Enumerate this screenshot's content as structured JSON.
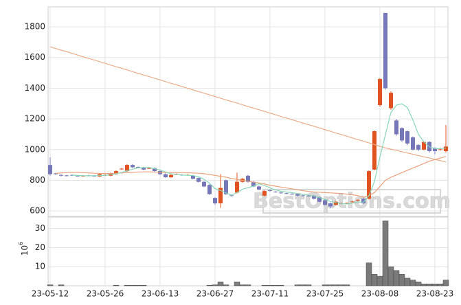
{
  "chart_data": {
    "type": "candlestick",
    "categories": [
      "23-05-12",
      null,
      null,
      null,
      null,
      null,
      null,
      null,
      null,
      null,
      "23-05-26",
      null,
      null,
      null,
      null,
      null,
      null,
      null,
      null,
      null,
      "23-06-13",
      null,
      null,
      null,
      null,
      null,
      null,
      null,
      null,
      null,
      "23-06-27",
      null,
      null,
      null,
      null,
      null,
      null,
      null,
      null,
      null,
      "23-07-11",
      null,
      null,
      null,
      null,
      null,
      null,
      null,
      null,
      null,
      "23-07-25",
      null,
      null,
      null,
      null,
      null,
      null,
      null,
      null,
      null,
      "23-08-08",
      null,
      null,
      null,
      null,
      null,
      null,
      null,
      null,
      null,
      "23-08-23",
      null,
      null
    ],
    "open": [
      900,
      845,
      835,
      832,
      835,
      830,
      828,
      832,
      830,
      825,
      833,
      830,
      840,
      872,
      860,
      900,
      887,
      885,
      878,
      880,
      860,
      840,
      820,
      838,
      836,
      835,
      830,
      815,
      790,
      770,
      685,
      650,
      800,
      702,
      720,
      790,
      830,
      790,
      760,
      700,
      735,
      726,
      720,
      716,
      712,
      710,
      702,
      700,
      700,
      690,
      670,
      650,
      640,
      648,
      650,
      658,
      668,
      680,
      680,
      870,
      1290,
      1890,
      1270,
      1190,
      1140,
      1120,
      1080,
      1030,
      1000,
      1050,
      1010,
      1000,
      990
    ],
    "high": [
      950,
      850,
      840,
      836,
      838,
      834,
      834,
      836,
      834,
      845,
      840,
      850,
      865,
      880,
      905,
      905,
      890,
      888,
      884,
      884,
      864,
      845,
      840,
      845,
      840,
      840,
      835,
      818,
      795,
      775,
      690,
      840,
      805,
      706,
      850,
      815,
      835,
      795,
      765,
      735,
      740,
      730,
      724,
      720,
      716,
      714,
      706,
      704,
      704,
      694,
      674,
      655,
      665,
      655,
      656,
      666,
      676,
      685,
      865,
      1125,
      1465,
      1890,
      1380,
      1200,
      1145,
      1125,
      1085,
      1035,
      1055,
      1055,
      1015,
      1010,
      1160
    ],
    "low": [
      830,
      835,
      825,
      826,
      828,
      824,
      824,
      826,
      824,
      822,
      828,
      826,
      836,
      868,
      856,
      880,
      880,
      866,
      874,
      856,
      836,
      816,
      816,
      834,
      830,
      830,
      806,
      786,
      755,
      705,
      640,
      620,
      705,
      695,
      715,
      785,
      785,
      755,
      735,
      695,
      728,
      720,
      714,
      710,
      706,
      696,
      696,
      694,
      676,
      656,
      636,
      620,
      636,
      644,
      646,
      654,
      664,
      645,
      675,
      865,
      1280,
      1390,
      1260,
      1090,
      1050,
      1030,
      995,
      990,
      995,
      980,
      970,
      995,
      980
    ],
    "close": [
      840,
      840,
      830,
      830,
      832,
      828,
      830,
      830,
      828,
      840,
      835,
      845,
      860,
      876,
      900,
      885,
      884,
      870,
      880,
      860,
      840,
      820,
      835,
      840,
      835,
      836,
      810,
      790,
      760,
      710,
      650,
      750,
      710,
      700,
      790,
      810,
      790,
      760,
      740,
      730,
      733,
      724,
      718,
      714,
      710,
      700,
      700,
      698,
      680,
      660,
      640,
      630,
      660,
      650,
      652,
      662,
      672,
      650,
      860,
      1120,
      1460,
      1400,
      1370,
      1100,
      1060,
      1040,
      1000,
      1000,
      1050,
      990,
      990,
      1002,
      1020
    ],
    "up_color": "#e0521f",
    "down_color": "#7577b8",
    "ylim": [
      565,
      1930
    ],
    "yticks": [
      600,
      800,
      1000,
      1200,
      1400,
      1600,
      1800
    ],
    "grid": true,
    "lines": [
      {
        "color": "#e9ab88",
        "values": [
          1670,
          1659,
          1648,
          1638,
          1627,
          1616,
          1605,
          1594,
          1584,
          1573,
          1562,
          1551,
          1540,
          1530,
          1519,
          1508,
          1497,
          1486,
          1476,
          1465,
          1454,
          1443,
          1432,
          1422,
          1411,
          1400,
          1389,
          1378,
          1368,
          1357,
          1346,
          1335,
          1324,
          1314,
          1303,
          1292,
          1281,
          1270,
          1260,
          1249,
          1238,
          1227,
          1216,
          1206,
          1195,
          1184,
          1173,
          1162,
          1152,
          1141,
          1130,
          1119,
          1108,
          1098,
          1087,
          1076,
          1065,
          1054,
          1044,
          1033,
          1022,
          1011,
          1003,
          995,
          986,
          978,
          970,
          961,
          953,
          945,
          936,
          928,
          920
        ]
      },
      {
        "color": "#e9a07a",
        "values": [
          null,
          845,
          848,
          850,
          852,
          852,
          850,
          848,
          846,
          845,
          844,
          845,
          846,
          848,
          850,
          852,
          854,
          855,
          855,
          854,
          852,
          850,
          850,
          850,
          850,
          849,
          848,
          846,
          843,
          838,
          832,
          826,
          820,
          812,
          806,
          800,
          794,
          788,
          782,
          776,
          768,
          762,
          756,
          750,
          745,
          738,
          732,
          728,
          724,
          722,
          720,
          718,
          716,
          714,
          710,
          706,
          700,
          690,
          700,
          720,
          760,
          800,
          820,
          835,
          850,
          865,
          880,
          895,
          910,
          925,
          935,
          945,
          955
        ]
      },
      {
        "color": "#86d6b6",
        "values": [
          null,
          null,
          null,
          null,
          834,
          832,
          830,
          830,
          830,
          831,
          833,
          836,
          842,
          851,
          863,
          873,
          881,
          883,
          884,
          876,
          867,
          855,
          843,
          839,
          834,
          833,
          831,
          823,
          806,
          781,
          746,
          734,
          718,
          704,
          720,
          742,
          752,
          762,
          778,
          766,
          751,
          737,
          729,
          724,
          720,
          713,
          708,
          704,
          698,
          688,
          676,
          662,
          654,
          648,
          646,
          651,
          659,
          657,
          699,
          793,
          952,
          1098,
          1242,
          1290,
          1298,
          1274,
          1194,
          1100,
          1050,
          1018,
          1006,
          1006,
          1010
        ]
      }
    ],
    "volume": {
      "values": [
        0.5,
        0,
        0.5,
        0,
        0,
        0,
        0,
        0,
        0,
        0,
        0,
        0,
        0.3,
        0,
        0.3,
        0.3,
        0.3,
        0.3,
        0,
        0,
        0,
        0,
        0,
        0,
        0,
        0,
        0,
        0,
        0,
        0.3,
        0.5,
        2,
        0.5,
        0,
        2,
        0.5,
        0.5,
        0,
        0,
        0.3,
        0.3,
        0.3,
        0.3,
        0,
        0,
        0.5,
        0.5,
        0.5,
        0,
        0,
        0.5,
        0.5,
        0.5,
        0.5,
        0.5,
        0,
        0,
        0,
        12,
        6,
        5,
        34,
        10,
        8,
        6,
        4,
        3,
        2,
        1,
        1,
        1,
        1,
        3
      ],
      "color": "#7a7a7a",
      "ylim": [
        0,
        36
      ],
      "yticks": [
        10,
        20,
        30
      ],
      "unit_base": "10",
      "unit_exponent": "6"
    },
    "watermark": "BestOptions.com"
  }
}
